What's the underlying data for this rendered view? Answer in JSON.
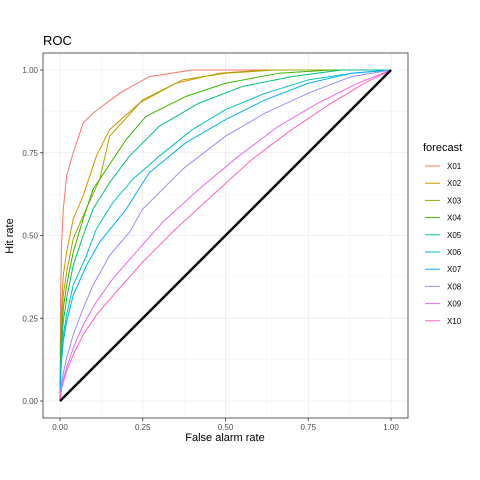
{
  "chart_data": {
    "type": "line",
    "title": "ROC",
    "xlabel": "False alarm rate",
    "ylabel": "Hit rate",
    "xlim": [
      0,
      1
    ],
    "ylim": [
      0,
      1
    ],
    "x_ticks": [
      "0.00",
      "0.25",
      "0.50",
      "0.75",
      "1.00"
    ],
    "y_ticks": [
      "0.00",
      "0.25",
      "0.50",
      "0.75",
      "1.00"
    ],
    "grid": true,
    "legend": {
      "title": "forecast",
      "position": "right"
    },
    "reference_line": {
      "x": [
        0,
        1
      ],
      "y": [
        0,
        1
      ],
      "color": "#000000"
    },
    "series": [
      {
        "name": "X01",
        "color": "#F8766D",
        "x": [
          0,
          0.002,
          0.005,
          0.01,
          0.02,
          0.04,
          0.07,
          0.1,
          0.18,
          0.27,
          0.4,
          0.6,
          0.8,
          1.0
        ],
        "y": [
          0,
          0.32,
          0.48,
          0.58,
          0.68,
          0.75,
          0.84,
          0.87,
          0.93,
          0.98,
          1.0,
          1.0,
          1.0,
          1.0
        ]
      },
      {
        "name": "X02",
        "color": "#D89000",
        "x": [
          0,
          0.003,
          0.01,
          0.02,
          0.04,
          0.07,
          0.11,
          0.15,
          0.24,
          0.35,
          0.48,
          0.62,
          0.78,
          1.0
        ],
        "y": [
          0,
          0.25,
          0.38,
          0.45,
          0.55,
          0.62,
          0.74,
          0.82,
          0.9,
          0.96,
          0.99,
          1.0,
          1.0,
          1.0
        ]
      },
      {
        "name": "X03",
        "color": "#A3A500",
        "x": [
          0,
          0.003,
          0.01,
          0.02,
          0.04,
          0.07,
          0.12,
          0.15,
          0.25,
          0.37,
          0.5,
          0.65,
          0.8,
          1.0
        ],
        "y": [
          0,
          0.2,
          0.32,
          0.39,
          0.49,
          0.56,
          0.67,
          0.8,
          0.91,
          0.97,
          0.99,
          1.0,
          1.0,
          1.0
        ]
      },
      {
        "name": "X04",
        "color": "#39B600",
        "x": [
          0,
          0.003,
          0.01,
          0.02,
          0.04,
          0.07,
          0.1,
          0.14,
          0.2,
          0.26,
          0.38,
          0.5,
          0.66,
          0.82,
          1.0
        ],
        "y": [
          0,
          0.18,
          0.28,
          0.35,
          0.45,
          0.55,
          0.64,
          0.7,
          0.79,
          0.86,
          0.92,
          0.96,
          0.99,
          1.0,
          1.0
        ]
      },
      {
        "name": "X05",
        "color": "#00BF7D",
        "x": [
          0,
          0.003,
          0.01,
          0.02,
          0.04,
          0.07,
          0.1,
          0.15,
          0.21,
          0.3,
          0.42,
          0.55,
          0.7,
          0.85,
          1.0
        ],
        "y": [
          0,
          0.15,
          0.24,
          0.31,
          0.41,
          0.5,
          0.58,
          0.66,
          0.74,
          0.83,
          0.9,
          0.95,
          0.98,
          1.0,
          1.0
        ]
      },
      {
        "name": "X06",
        "color": "#00BFC4",
        "x": [
          0,
          0.003,
          0.01,
          0.02,
          0.04,
          0.08,
          0.11,
          0.16,
          0.22,
          0.3,
          0.4,
          0.5,
          0.62,
          0.75,
          0.88,
          1.0
        ],
        "y": [
          0,
          0.12,
          0.2,
          0.26,
          0.35,
          0.44,
          0.52,
          0.6,
          0.67,
          0.74,
          0.82,
          0.88,
          0.93,
          0.97,
          0.99,
          1.0
        ]
      },
      {
        "name": "X07",
        "color": "#00B0F6",
        "x": [
          0,
          0.003,
          0.01,
          0.02,
          0.04,
          0.08,
          0.12,
          0.2,
          0.27,
          0.38,
          0.5,
          0.62,
          0.75,
          0.88,
          1.0
        ],
        "y": [
          0,
          0.1,
          0.18,
          0.24,
          0.32,
          0.41,
          0.48,
          0.58,
          0.69,
          0.78,
          0.85,
          0.91,
          0.96,
          0.99,
          1.0
        ]
      },
      {
        "name": "X08",
        "color": "#9590FF",
        "x": [
          0,
          0.005,
          0.02,
          0.04,
          0.07,
          0.1,
          0.15,
          0.21,
          0.25,
          0.37,
          0.5,
          0.62,
          0.75,
          0.88,
          1.0
        ],
        "y": [
          0,
          0.06,
          0.13,
          0.2,
          0.28,
          0.35,
          0.44,
          0.51,
          0.58,
          0.7,
          0.8,
          0.87,
          0.93,
          0.98,
          1.0
        ]
      },
      {
        "name": "X09",
        "color": "#E76BF3",
        "x": [
          0,
          0.005,
          0.02,
          0.04,
          0.07,
          0.11,
          0.16,
          0.23,
          0.31,
          0.42,
          0.54,
          0.66,
          0.78,
          0.9,
          1.0
        ],
        "y": [
          0,
          0.05,
          0.1,
          0.16,
          0.23,
          0.3,
          0.37,
          0.45,
          0.54,
          0.64,
          0.74,
          0.83,
          0.9,
          0.96,
          1.0
        ]
      },
      {
        "name": "X10",
        "color": "#FF62BC",
        "x": [
          0,
          0.005,
          0.02,
          0.04,
          0.07,
          0.11,
          0.17,
          0.25,
          0.35,
          0.47,
          0.58,
          0.7,
          0.82,
          0.92,
          1.0
        ],
        "y": [
          0,
          0.04,
          0.09,
          0.14,
          0.2,
          0.26,
          0.33,
          0.42,
          0.52,
          0.63,
          0.73,
          0.82,
          0.9,
          0.96,
          1.0
        ]
      }
    ]
  }
}
